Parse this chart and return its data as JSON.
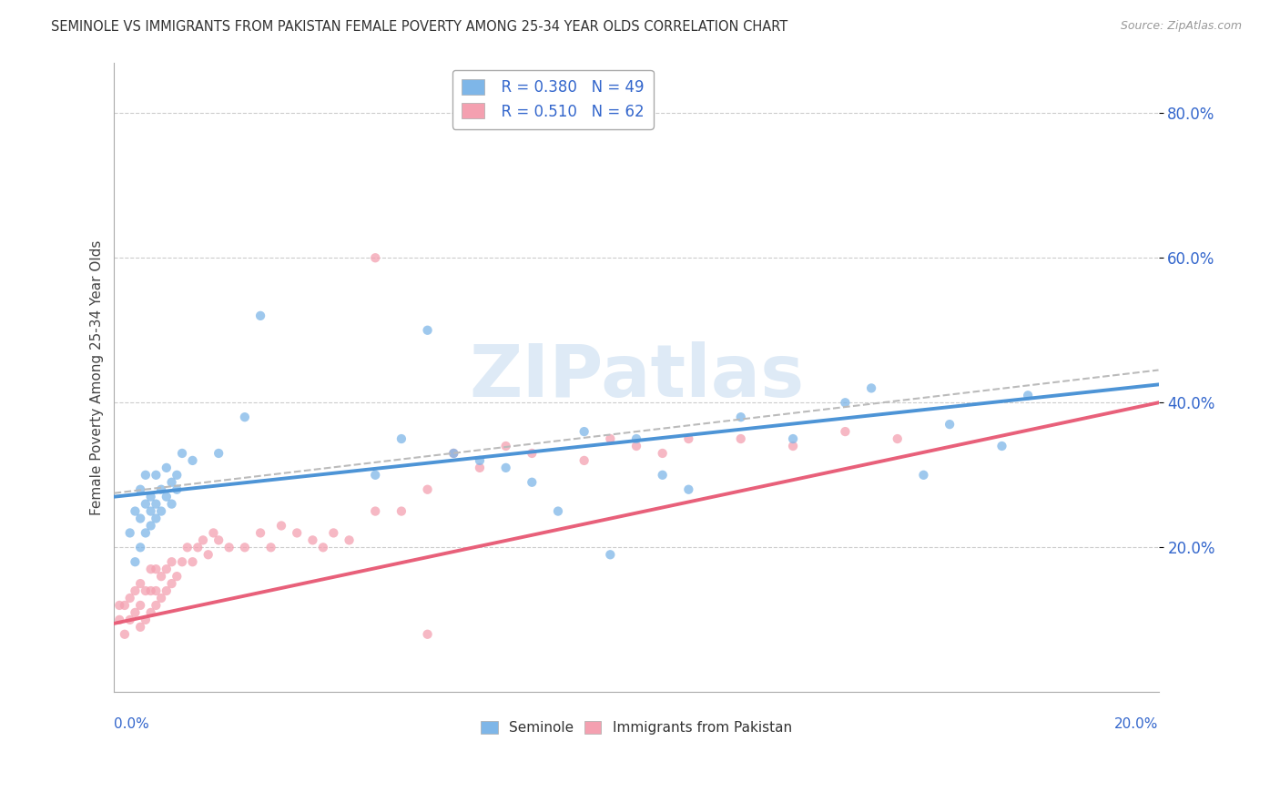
{
  "title": "SEMINOLE VS IMMIGRANTS FROM PAKISTAN FEMALE POVERTY AMONG 25-34 YEAR OLDS CORRELATION CHART",
  "source": "Source: ZipAtlas.com",
  "ylabel": "Female Poverty Among 25-34 Year Olds",
  "y_tick_labels": [
    "20.0%",
    "40.0%",
    "60.0%",
    "80.0%"
  ],
  "y_tick_values": [
    0.2,
    0.4,
    0.6,
    0.8
  ],
  "xlim": [
    0.0,
    0.2
  ],
  "ylim": [
    0.0,
    0.87
  ],
  "seminole_color": "#7EB6E8",
  "seminole_line_color": "#4D94D6",
  "pakistan_color": "#F4A0B0",
  "pakistan_line_color": "#E8607A",
  "seminole_R": 0.38,
  "seminole_N": 49,
  "pakistan_R": 0.51,
  "pakistan_N": 62,
  "legend_R_color": "#3366CC",
  "watermark_color": "#C8DCF0",
  "background_color": "#FFFFFF",
  "grid_color": "#CCCCCC",
  "dashed_line_color": "#BBBBBB",
  "seminole_line_y0": 0.27,
  "seminole_line_y1": 0.425,
  "pakistan_line_y0": 0.095,
  "pakistan_line_y1": 0.4,
  "dashed_line_y0": 0.275,
  "dashed_line_y1": 0.445,
  "seminole_x": [
    0.003,
    0.004,
    0.004,
    0.005,
    0.005,
    0.005,
    0.006,
    0.006,
    0.006,
    0.007,
    0.007,
    0.007,
    0.008,
    0.008,
    0.008,
    0.009,
    0.009,
    0.01,
    0.01,
    0.011,
    0.011,
    0.012,
    0.012,
    0.013,
    0.015,
    0.02,
    0.025,
    0.028,
    0.05,
    0.055,
    0.06,
    0.065,
    0.07,
    0.075,
    0.08,
    0.09,
    0.1,
    0.105,
    0.12,
    0.13,
    0.145,
    0.16,
    0.17,
    0.155,
    0.095,
    0.085,
    0.11,
    0.14,
    0.175
  ],
  "seminole_y": [
    0.22,
    0.18,
    0.25,
    0.2,
    0.24,
    0.28,
    0.22,
    0.26,
    0.3,
    0.25,
    0.27,
    0.23,
    0.26,
    0.3,
    0.24,
    0.28,
    0.25,
    0.27,
    0.31,
    0.26,
    0.29,
    0.3,
    0.28,
    0.33,
    0.32,
    0.33,
    0.38,
    0.52,
    0.3,
    0.35,
    0.5,
    0.33,
    0.32,
    0.31,
    0.29,
    0.36,
    0.35,
    0.3,
    0.38,
    0.35,
    0.42,
    0.37,
    0.34,
    0.3,
    0.19,
    0.25,
    0.28,
    0.4,
    0.41
  ],
  "pakistan_x": [
    0.001,
    0.001,
    0.002,
    0.002,
    0.003,
    0.003,
    0.004,
    0.004,
    0.005,
    0.005,
    0.005,
    0.006,
    0.006,
    0.007,
    0.007,
    0.007,
    0.008,
    0.008,
    0.008,
    0.009,
    0.009,
    0.01,
    0.01,
    0.011,
    0.011,
    0.012,
    0.013,
    0.014,
    0.015,
    0.016,
    0.017,
    0.018,
    0.019,
    0.02,
    0.022,
    0.025,
    0.028,
    0.03,
    0.032,
    0.035,
    0.038,
    0.04,
    0.042,
    0.045,
    0.05,
    0.055,
    0.06,
    0.065,
    0.07,
    0.075,
    0.08,
    0.09,
    0.095,
    0.1,
    0.105,
    0.11,
    0.12,
    0.13,
    0.14,
    0.15,
    0.05,
    0.06
  ],
  "pakistan_y": [
    0.1,
    0.12,
    0.08,
    0.12,
    0.1,
    0.13,
    0.11,
    0.14,
    0.09,
    0.12,
    0.15,
    0.1,
    0.14,
    0.11,
    0.14,
    0.17,
    0.12,
    0.14,
    0.17,
    0.13,
    0.16,
    0.14,
    0.17,
    0.15,
    0.18,
    0.16,
    0.18,
    0.2,
    0.18,
    0.2,
    0.21,
    0.19,
    0.22,
    0.21,
    0.2,
    0.2,
    0.22,
    0.2,
    0.23,
    0.22,
    0.21,
    0.2,
    0.22,
    0.21,
    0.25,
    0.25,
    0.28,
    0.33,
    0.31,
    0.34,
    0.33,
    0.32,
    0.35,
    0.34,
    0.33,
    0.35,
    0.35,
    0.34,
    0.36,
    0.35,
    0.6,
    0.08
  ]
}
